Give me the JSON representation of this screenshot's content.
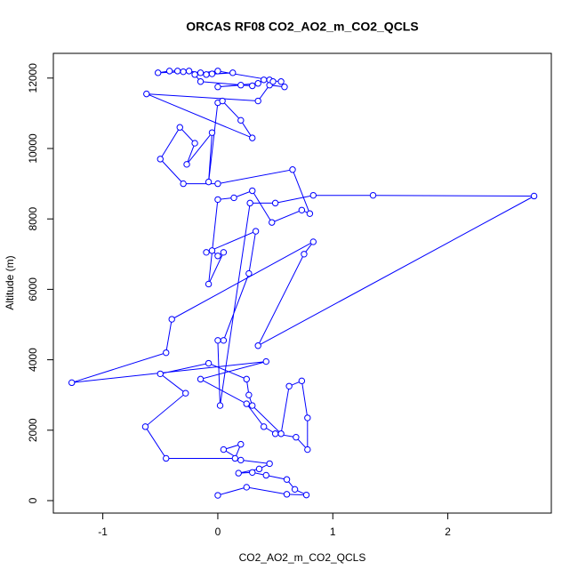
{
  "chart_data": {
    "type": "line",
    "title": "ORCAS RF08 CO2_AO2_m_CO2_QCLS",
    "x_label": "CO2_AO2_m_CO2_QCLS",
    "y_label": "Altitude (m)",
    "color": "#0000ff",
    "markers": true,
    "xlim": [
      -1.43,
      2.9
    ],
    "ylim": [
      -354,
      12702
    ],
    "xticks": [
      -1,
      0,
      1,
      2
    ],
    "yticks": [
      0,
      2000,
      4000,
      6000,
      8000,
      10000,
      12000
    ],
    "x": [
      0.0,
      0.25,
      0.6,
      0.77,
      0.67,
      0.6,
      0.42,
      0.3,
      0.18,
      0.36,
      0.45,
      0.2,
      0.05,
      0.2,
      0.15,
      -0.45,
      -0.63,
      -0.28,
      -0.5,
      -0.08,
      0.25,
      0.27,
      0.3,
      0.55,
      0.62,
      0.73,
      0.78,
      0.78,
      0.68,
      0.5,
      0.4,
      0.25,
      -0.15,
      0.42,
      -1.27,
      -0.45,
      -0.4,
      0.83,
      0.75,
      0.35,
      2.75,
      1.35,
      0.83,
      0.5,
      0.28,
      0.02,
      0.0,
      0.05,
      0.27,
      0.33,
      -0.1,
      -0.05,
      0.0,
      0.05,
      -0.08,
      0.0,
      0.14,
      0.3,
      0.47,
      0.73,
      0.8,
      0.65,
      0.0,
      -0.3,
      -0.5,
      -0.33,
      -0.2,
      -0.27,
      -0.05,
      -0.08,
      0.0,
      0.04,
      0.2,
      0.3,
      -0.62,
      0.35,
      0.45,
      0.58,
      0.55,
      0.4,
      0.35,
      0.0,
      0.2,
      0.3,
      -0.15,
      -0.2,
      -0.05,
      0.13,
      -0.1,
      -0.35,
      -0.42,
      -0.52,
      -0.3,
      -0.25,
      -0.15,
      0.0,
      0.45,
      0.48
    ],
    "y": [
      150,
      380,
      180,
      160,
      320,
      600,
      720,
      800,
      780,
      900,
      1050,
      1150,
      1450,
      1600,
      1200,
      1200,
      2100,
      3050,
      3600,
      3900,
      3450,
      3000,
      2700,
      1900,
      3250,
      3400,
      2350,
      1450,
      1800,
      1900,
      2100,
      2750,
      3450,
      3950,
      3350,
      4200,
      5150,
      7350,
      7000,
      4400,
      8650,
      8670,
      8670,
      8450,
      8450,
      2700,
      4550,
      4550,
      6450,
      7650,
      7050,
      7100,
      6950,
      7050,
      6150,
      8550,
      8600,
      8800,
      7900,
      8250,
      8150,
      9400,
      9000,
      9000,
      9700,
      10600,
      10150,
      9550,
      10450,
      9050,
      11300,
      11350,
      10800,
      10300,
      11550,
      11350,
      11800,
      11750,
      11900,
      11950,
      11850,
      11750,
      11800,
      11780,
      11900,
      12100,
      12120,
      12150,
      12100,
      12200,
      12200,
      12150,
      12180,
      12200,
      12150,
      12200,
      11950,
      11900
    ]
  }
}
